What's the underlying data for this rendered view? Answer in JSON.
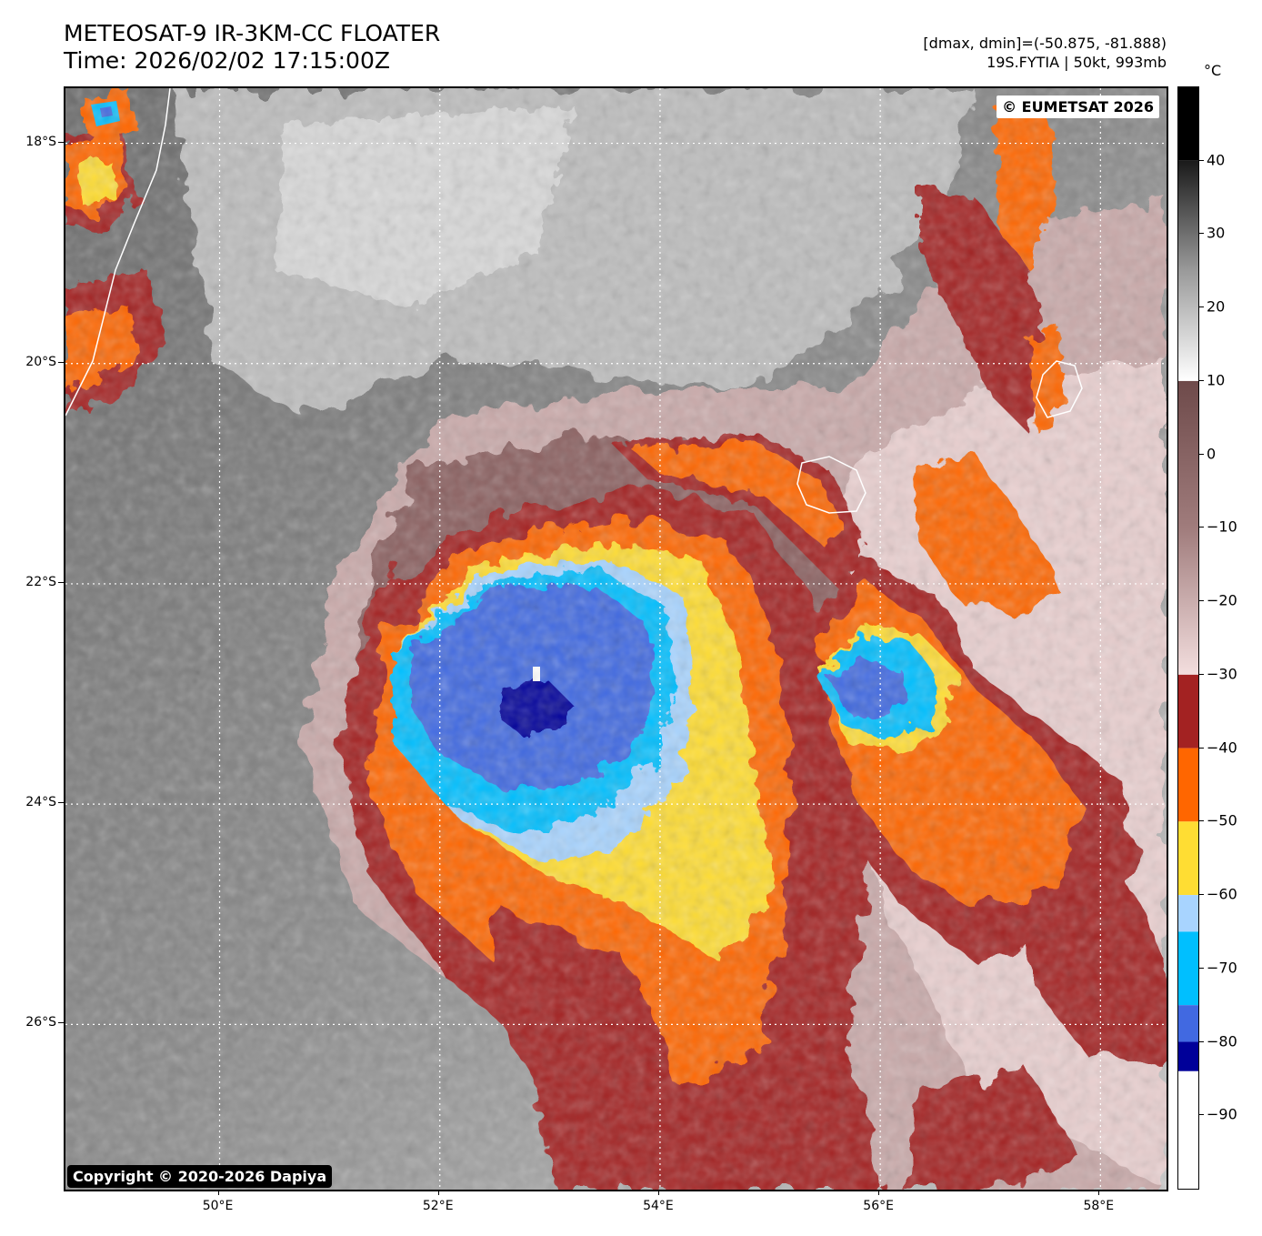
{
  "header": {
    "title_line1": "METEOSAT-9 IR-3KM-CC FLOATER",
    "title_line2": "Time: 2026/02/02 17:15:00Z",
    "stats_line": "[dmax, dmin]=(-50.875, -81.888)",
    "storm_line": "19S.FYTIA | 50kt, 993mb"
  },
  "map": {
    "watermark_top": "© EUMETSAT 2026",
    "watermark_bottom": "Copyright © 2020-2026 Dapiya",
    "lon_range": [
      48.6,
      58.6
    ],
    "lat_range": [
      -17.5,
      -27.5
    ],
    "lat_ticks": [
      {
        "value": -18,
        "label": "18°S"
      },
      {
        "value": -20,
        "label": "20°S"
      },
      {
        "value": -22,
        "label": "22°S"
      },
      {
        "value": -24,
        "label": "24°S"
      },
      {
        "value": -26,
        "label": "26°S"
      }
    ],
    "lon_ticks": [
      {
        "value": 50,
        "label": "50°E"
      },
      {
        "value": 52,
        "label": "52°E"
      },
      {
        "value": 54,
        "label": "54°E"
      },
      {
        "value": 56,
        "label": "56°E"
      },
      {
        "value": 58,
        "label": "58°E"
      }
    ]
  },
  "colorbar": {
    "unit": "°C",
    "range": [
      -100,
      50
    ],
    "ticks": [
      {
        "value": 40,
        "label": "40"
      },
      {
        "value": 30,
        "label": "30"
      },
      {
        "value": 20,
        "label": "20"
      },
      {
        "value": 10,
        "label": "10"
      },
      {
        "value": 0,
        "label": "0"
      },
      {
        "value": -10,
        "label": "−10"
      },
      {
        "value": -20,
        "label": "−20"
      },
      {
        "value": -30,
        "label": "−30"
      },
      {
        "value": -40,
        "label": "−40"
      },
      {
        "value": -50,
        "label": "−50"
      },
      {
        "value": -60,
        "label": "−60"
      },
      {
        "value": -70,
        "label": "−70"
      },
      {
        "value": -80,
        "label": "−80"
      },
      {
        "value": -90,
        "label": "−90"
      }
    ],
    "colors": {
      "above_40": "#000000",
      "band_10_to_40": [
        "#1a1a1a",
        "#9a9a9a",
        "#ffffff"
      ],
      "band_minus30_to_10": [
        "#f3dede",
        "#a07c7c",
        "#6e4a4a"
      ],
      "band_minus40_to_minus30": "#a32222",
      "band_minus50_to_minus40": "#ff6600",
      "band_minus60_to_minus50": "#ffdd33",
      "band_minus65_to_minus60": "#a8d4ff",
      "band_minus75_to_minus65": "#00bfff",
      "band_minus80_to_minus75": "#4169e1",
      "band_minus84_to_minus80": "#000099",
      "below_minus84": "#ffffff"
    }
  }
}
